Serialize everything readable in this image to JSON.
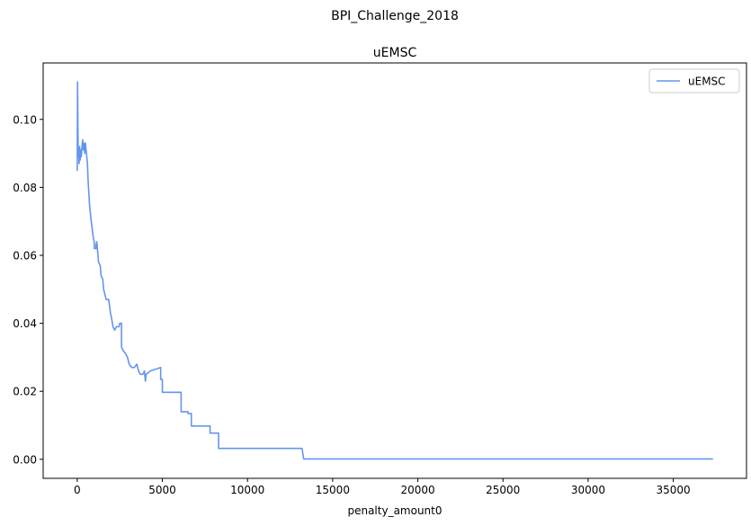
{
  "figure": {
    "suptitle": "BPI_Challenge_2018"
  },
  "chart_data": {
    "type": "line",
    "title": "uEMSC",
    "xlabel": "penalty_amount0",
    "ylabel": "",
    "xlim": [
      -2000,
      39300
    ],
    "ylim": [
      -0.0056,
      0.1166
    ],
    "xticks": [
      0,
      5000,
      10000,
      15000,
      20000,
      25000,
      30000,
      35000
    ],
    "yticks": [
      0.0,
      0.02,
      0.04,
      0.06,
      0.08,
      0.1
    ],
    "xtick_labels": [
      "0",
      "5000",
      "10000",
      "15000",
      "20000",
      "25000",
      "30000",
      "35000"
    ],
    "ytick_labels": [
      "0.00",
      "0.02",
      "0.04",
      "0.06",
      "0.08",
      "0.10"
    ],
    "grid": false,
    "legend": {
      "position": "top-right",
      "entries": [
        "uEMSC"
      ]
    },
    "series": [
      {
        "name": "uEMSC",
        "color": "#6495ed",
        "points": [
          [
            0,
            0.085
          ],
          [
            20,
            0.111
          ],
          [
            40,
            0.098
          ],
          [
            60,
            0.089
          ],
          [
            80,
            0.091
          ],
          [
            110,
            0.087
          ],
          [
            140,
            0.092
          ],
          [
            170,
            0.088
          ],
          [
            200,
            0.091
          ],
          [
            240,
            0.089
          ],
          [
            280,
            0.092
          ],
          [
            320,
            0.094
          ],
          [
            360,
            0.091
          ],
          [
            400,
            0.093
          ],
          [
            440,
            0.09
          ],
          [
            480,
            0.093
          ],
          [
            520,
            0.091
          ],
          [
            560,
            0.089
          ],
          [
            600,
            0.087
          ],
          [
            630,
            0.083
          ],
          [
            660,
            0.08
          ],
          [
            690,
            0.078
          ],
          [
            720,
            0.075
          ],
          [
            760,
            0.073
          ],
          [
            800,
            0.071
          ],
          [
            850,
            0.069
          ],
          [
            900,
            0.067
          ],
          [
            950,
            0.065
          ],
          [
            1000,
            0.064
          ],
          [
            1000,
            0.062
          ],
          [
            1100,
            0.062
          ],
          [
            1100,
            0.063
          ],
          [
            1150,
            0.064
          ],
          [
            1200,
            0.061
          ],
          [
            1250,
            0.058
          ],
          [
            1350,
            0.057
          ],
          [
            1400,
            0.054
          ],
          [
            1500,
            0.053
          ],
          [
            1550,
            0.05
          ],
          [
            1650,
            0.048
          ],
          [
            1700,
            0.047
          ],
          [
            1850,
            0.047
          ],
          [
            1900,
            0.045
          ],
          [
            1950,
            0.043
          ],
          [
            2000,
            0.042
          ],
          [
            2100,
            0.039
          ],
          [
            2200,
            0.038
          ],
          [
            2300,
            0.039
          ],
          [
            2450,
            0.039
          ],
          [
            2500,
            0.04
          ],
          [
            2600,
            0.04
          ],
          [
            2600,
            0.033
          ],
          [
            2700,
            0.032
          ],
          [
            2850,
            0.031
          ],
          [
            2950,
            0.03
          ],
          [
            3050,
            0.028
          ],
          [
            3200,
            0.027
          ],
          [
            3350,
            0.027
          ],
          [
            3500,
            0.028
          ],
          [
            3600,
            0.026
          ],
          [
            3700,
            0.025
          ],
          [
            3850,
            0.025
          ],
          [
            3950,
            0.026
          ],
          [
            4000,
            0.023
          ],
          [
            4050,
            0.025
          ],
          [
            4300,
            0.026
          ],
          [
            4600,
            0.0265
          ],
          [
            4900,
            0.027
          ],
          [
            4900,
            0.0235
          ],
          [
            5000,
            0.0235
          ],
          [
            5000,
            0.0197
          ],
          [
            6100,
            0.0197
          ],
          [
            6100,
            0.014
          ],
          [
            6500,
            0.014
          ],
          [
            6500,
            0.0135
          ],
          [
            6700,
            0.0135
          ],
          [
            6700,
            0.0098
          ],
          [
            7800,
            0.0098
          ],
          [
            7800,
            0.0077
          ],
          [
            8300,
            0.0077
          ],
          [
            8300,
            0.0032
          ],
          [
            13200,
            0.0032
          ],
          [
            13300,
            0.0001
          ],
          [
            37300,
            0.0001
          ]
        ]
      }
    ]
  }
}
